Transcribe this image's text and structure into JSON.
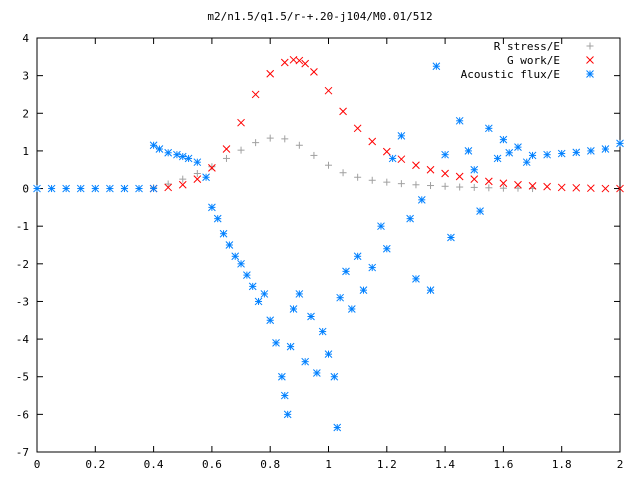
{
  "chart_data": {
    "type": "scatter",
    "title": "m2/n1.5/q1.5/r-+.20-j104/M0.01/512",
    "xlabel": "",
    "ylabel": "",
    "xlim": [
      0,
      2
    ],
    "ylim": [
      -7,
      4
    ],
    "x_ticks": [
      "0",
      "0.2",
      "0.4",
      "0.6",
      "0.8",
      "1",
      "1.2",
      "1.4",
      "1.6",
      "1.8",
      "2"
    ],
    "x_tick_values": [
      0,
      0.2,
      0.4,
      0.6,
      0.8,
      1.0,
      1.2,
      1.4,
      1.6,
      1.8,
      2.0
    ],
    "y_ticks": [
      "4",
      "3",
      "2",
      "1",
      "0",
      "-1",
      "-2",
      "-3",
      "-4",
      "-5",
      "-6",
      "-7"
    ],
    "y_tick_values": [
      4,
      3,
      2,
      1,
      0,
      -1,
      -2,
      -3,
      -4,
      -5,
      -6,
      -7
    ],
    "grid": false,
    "legend_position": "top-right",
    "series": [
      {
        "name": "R stress/E",
        "color": "#a0a0a0",
        "marker": "plus",
        "x": [
          0.4,
          0.45,
          0.5,
          0.55,
          0.6,
          0.65,
          0.7,
          0.75,
          0.8,
          0.85,
          0.9,
          0.95,
          1.0,
          1.05,
          1.1,
          1.15,
          1.2,
          1.25,
          1.3,
          1.35,
          1.4,
          1.45,
          1.5,
          1.55,
          1.6,
          1.65,
          1.7
        ],
        "y": [
          0.02,
          0.12,
          0.25,
          0.4,
          0.58,
          0.8,
          1.02,
          1.22,
          1.34,
          1.32,
          1.15,
          0.88,
          0.62,
          0.42,
          0.3,
          0.22,
          0.17,
          0.13,
          0.1,
          0.08,
          0.06,
          0.04,
          0.03,
          0.02,
          0.01,
          0.01,
          0.0
        ]
      },
      {
        "name": "G work/E",
        "color": "#ff0000",
        "marker": "cross",
        "x": [
          0.4,
          0.45,
          0.5,
          0.55,
          0.6,
          0.65,
          0.7,
          0.75,
          0.8,
          0.85,
          0.88,
          0.9,
          0.92,
          0.95,
          1.0,
          1.05,
          1.1,
          1.15,
          1.2,
          1.25,
          1.3,
          1.35,
          1.4,
          1.45,
          1.5,
          1.55,
          1.6,
          1.65,
          1.7,
          1.75,
          1.8,
          1.85,
          1.9,
          1.95,
          2.0
        ],
        "y": [
          0.0,
          0.03,
          0.1,
          0.25,
          0.55,
          1.05,
          1.75,
          2.5,
          3.05,
          3.35,
          3.42,
          3.4,
          3.32,
          3.1,
          2.6,
          2.05,
          1.6,
          1.25,
          0.98,
          0.78,
          0.62,
          0.5,
          0.4,
          0.32,
          0.25,
          0.19,
          0.14,
          0.1,
          0.07,
          0.05,
          0.03,
          0.02,
          0.01,
          0.0,
          0.0
        ]
      },
      {
        "name": "Acoustic flux/E",
        "color": "#0080ff",
        "marker": "star",
        "x": [
          0.0,
          0.05,
          0.1,
          0.15,
          0.2,
          0.25,
          0.3,
          0.35,
          0.4,
          0.4,
          0.42,
          0.45,
          0.48,
          0.5,
          0.52,
          0.55,
          0.58,
          0.6,
          0.62,
          0.64,
          0.66,
          0.68,
          0.7,
          0.72,
          0.74,
          0.76,
          0.78,
          0.8,
          0.82,
          0.84,
          0.85,
          0.86,
          0.87,
          0.88,
          0.9,
          0.92,
          0.94,
          0.96,
          0.98,
          1.0,
          1.02,
          1.03,
          1.04,
          1.06,
          1.08,
          1.1,
          1.12,
          1.15,
          1.18,
          1.2,
          1.22,
          1.25,
          1.28,
          1.3,
          1.32,
          1.35,
          1.37,
          1.4,
          1.42,
          1.45,
          1.48,
          1.5,
          1.52,
          1.55,
          1.58,
          1.6,
          1.62,
          1.65,
          1.68,
          1.7,
          1.75,
          1.8,
          1.85,
          1.9,
          1.95,
          2.0
        ],
        "y": [
          0.0,
          0.0,
          0.0,
          0.0,
          0.0,
          0.0,
          0.0,
          0.0,
          0.0,
          1.15,
          1.05,
          0.95,
          0.9,
          0.85,
          0.8,
          0.7,
          0.3,
          -0.5,
          -0.8,
          -1.2,
          -1.5,
          -1.8,
          -2.0,
          -2.3,
          -2.6,
          -3.0,
          -2.8,
          -3.5,
          -4.1,
          -5.0,
          -5.5,
          -6.0,
          -4.2,
          -3.2,
          -2.8,
          -4.6,
          -3.4,
          -4.9,
          -3.8,
          -4.4,
          -5.0,
          -6.35,
          -2.9,
          -2.2,
          -3.2,
          -1.8,
          -2.7,
          -2.1,
          -1.0,
          -1.6,
          0.8,
          1.4,
          -0.8,
          -2.4,
          -0.3,
          -2.7,
          3.25,
          0.9,
          -1.3,
          1.8,
          1.0,
          0.5,
          -0.6,
          1.6,
          0.8,
          1.3,
          0.95,
          1.1,
          0.7,
          0.88,
          0.9,
          0.93,
          0.96,
          1.0,
          1.05,
          1.2
        ]
      }
    ]
  }
}
